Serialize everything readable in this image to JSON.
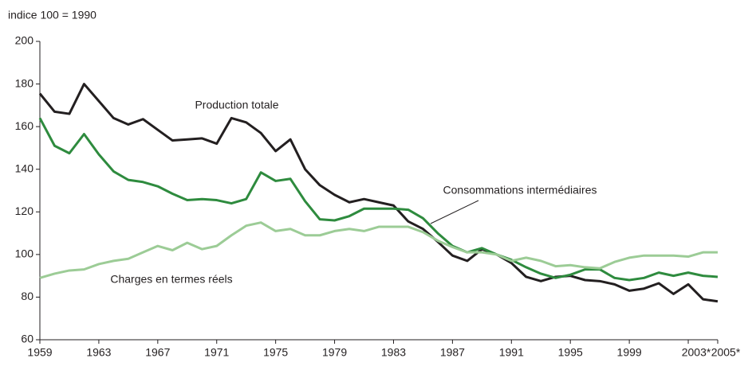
{
  "chart_data": {
    "type": "line",
    "y_label": "indice 100 = 1990",
    "x": [
      1959,
      1960,
      1961,
      1962,
      1963,
      1964,
      1965,
      1966,
      1967,
      1968,
      1969,
      1970,
      1971,
      1972,
      1973,
      1974,
      1975,
      1976,
      1977,
      1978,
      1979,
      1980,
      1981,
      1982,
      1983,
      1984,
      1985,
      1986,
      1987,
      1988,
      1989,
      1990,
      1991,
      1992,
      1993,
      1994,
      1995,
      1996,
      1997,
      1998,
      1999,
      2000,
      2001,
      2002,
      2003,
      2004,
      2005
    ],
    "series": [
      {
        "name": "Production totale",
        "color": "#231f20",
        "values": [
          175.5,
          167,
          166,
          180,
          172,
          164,
          161,
          163.5,
          158.5,
          153.5,
          154,
          154.5,
          152,
          164,
          162,
          157,
          148.5,
          154,
          140,
          132.5,
          128,
          124.5,
          126,
          124.5,
          123,
          115.5,
          112,
          106,
          99.5,
          97,
          102.5,
          100,
          96,
          89.5,
          87.5,
          89.5,
          90,
          88,
          87.5,
          86,
          83,
          84,
          86.5,
          81.5,
          86,
          79,
          78
        ]
      },
      {
        "name": "Consommations intermédiaires",
        "color": "#2e8b3e",
        "values": [
          164,
          151,
          147.5,
          156.5,
          147,
          139,
          135,
          134,
          132,
          128.5,
          125.5,
          126,
          125.5,
          124,
          126,
          138.5,
          134.5,
          135.5,
          125,
          116.5,
          116,
          118,
          121.5,
          121.5,
          121.5,
          121,
          117,
          110,
          104,
          101,
          103,
          100,
          97.5,
          94,
          91,
          89,
          90.5,
          93,
          93,
          89,
          88,
          89,
          91.5,
          90,
          91.5,
          90,
          89.5
        ]
      },
      {
        "name": "Charges en termes réels",
        "color": "#9ccc96",
        "values": [
          89,
          91,
          92.5,
          93,
          95.5,
          97,
          98,
          101,
          104,
          102,
          105.5,
          102.5,
          104,
          109,
          113.5,
          115,
          111,
          112,
          109,
          109,
          111,
          112,
          111,
          113,
          113,
          113,
          110.5,
          106.5,
          103.5,
          101,
          101,
          100,
          97,
          98.5,
          97,
          94.5,
          95,
          94,
          93.5,
          96.5,
          98.5,
          99.5,
          99.5,
          99.5,
          99,
          101,
          101
        ]
      }
    ],
    "xlim": [
      1959,
      2005
    ],
    "xticks": [
      1959,
      1963,
      1967,
      1971,
      1975,
      1979,
      1983,
      1987,
      1991,
      1995,
      1999,
      {
        "value": 2003,
        "label": "2003*"
      },
      {
        "value": 2005,
        "label": "2005*"
      }
    ],
    "ylim": [
      60,
      200
    ],
    "yticks": [
      60,
      80,
      100,
      120,
      140,
      160,
      180,
      200
    ]
  }
}
